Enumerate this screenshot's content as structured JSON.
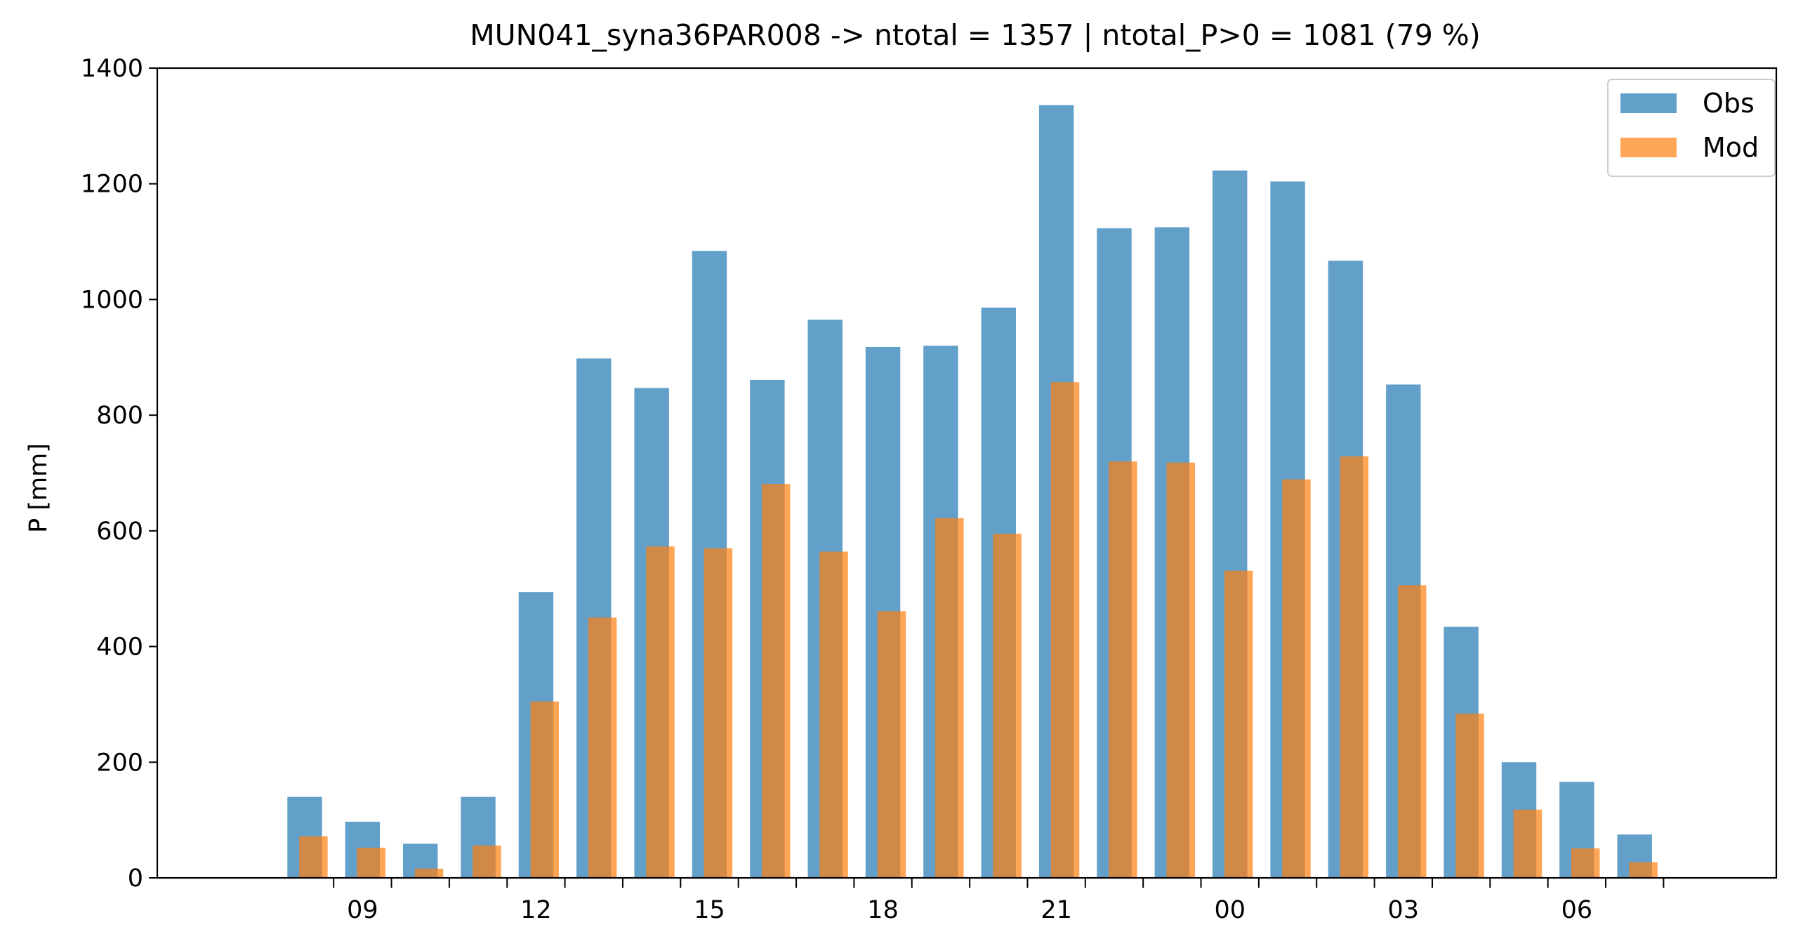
{
  "chart_data": {
    "type": "bar",
    "title": "MUN041_syna36PAR008 -> ntotal = 1357 | ntotal_P>0 = 1081 (79 %)",
    "xlabel": "",
    "ylabel": "P [mm]",
    "ylim": [
      0,
      1400
    ],
    "yticks": [
      0,
      200,
      400,
      600,
      800,
      1000,
      1200,
      1400
    ],
    "xticks": [
      {
        "hour": 9,
        "label": "09"
      },
      {
        "hour": 12,
        "label": "12"
      },
      {
        "hour": 15,
        "label": "15"
      },
      {
        "hour": 18,
        "label": "18"
      },
      {
        "hour": 21,
        "label": "21"
      },
      {
        "hour": 24,
        "label": "00"
      },
      {
        "hour": 27,
        "label": "03"
      },
      {
        "hour": 30,
        "label": "06"
      }
    ],
    "hours": [
      8,
      9,
      10,
      11,
      12,
      13,
      14,
      15,
      16,
      17,
      18,
      19,
      20,
      21,
      22,
      23,
      24,
      25,
      26,
      27,
      28,
      29,
      30,
      31
    ],
    "grid": false,
    "legend_position": "top-right",
    "series": [
      {
        "name": "Obs",
        "color": "#1f77b4",
        "opacity": 0.7,
        "values": [
          140,
          97,
          59,
          140,
          494,
          898,
          847,
          1084,
          861,
          965,
          918,
          920,
          986,
          1336,
          1123,
          1125,
          1223,
          1204,
          1067,
          853,
          434,
          200,
          166,
          75
        ]
      },
      {
        "name": "Mod",
        "color": "#ff7f0e",
        "opacity": 0.7,
        "values": [
          72,
          52,
          16,
          56,
          305,
          450,
          573,
          570,
          681,
          564,
          461,
          622,
          595,
          857,
          720,
          718,
          531,
          689,
          729,
          506,
          284,
          118,
          51,
          27
        ]
      }
    ]
  }
}
